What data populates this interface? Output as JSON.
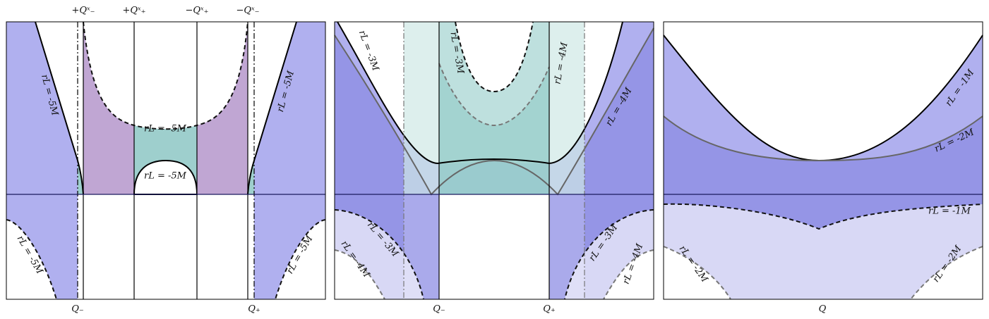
{
  "panels": [
    {
      "top_labels": [
        "+Qˣ₋",
        "+Qˣ₊",
        "−Qˣ₊",
        "−Qˣ₋"
      ],
      "bottom_labels": [
        "Q₋",
        "Q₊"
      ],
      "curve_labels": [
        "rL = -5M",
        "rL = -5M",
        "rL = -5M",
        "rL = -5M",
        "rL = -5M",
        "rL = -5M"
      ]
    },
    {
      "bottom_labels": [
        "Q₋",
        "Q₊"
      ],
      "curve_labels": [
        "rL = -3M",
        "rL = -3M",
        "rL = -4M",
        "rL = -4M",
        "rL = -3M",
        "rL = -4M",
        "rL = -3M",
        "rL = -4M"
      ]
    },
    {
      "bottom_labels": [
        "Q"
      ],
      "curve_labels": [
        "rL = -1M",
        "rL = -2M",
        "rL = -1M",
        "rL = -2M",
        "rL = -2M"
      ]
    }
  ]
}
